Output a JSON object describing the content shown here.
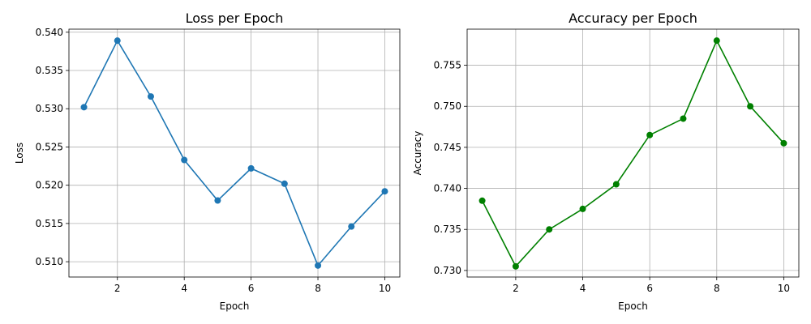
{
  "chart_data": [
    {
      "type": "line",
      "title": "Loss per Epoch",
      "xlabel": "Epoch",
      "ylabel": "Loss",
      "xlim": [
        0.55,
        10.45
      ],
      "ylim": [
        0.508,
        0.5404
      ],
      "xticks": [
        2,
        4,
        6,
        8,
        10
      ],
      "yticks": [
        0.51,
        0.515,
        0.52,
        0.525,
        0.53,
        0.535,
        0.54
      ],
      "ytick_decimals": 3,
      "grid": true,
      "color": "#1f77b4",
      "x": [
        1,
        2,
        3,
        4,
        5,
        6,
        7,
        8,
        9,
        10
      ],
      "y": [
        0.5302,
        0.5389,
        0.5316,
        0.5233,
        0.518,
        0.5222,
        0.5202,
        0.5095,
        0.5146,
        0.5192
      ]
    },
    {
      "type": "line",
      "title": "Accuracy per Epoch",
      "xlabel": "Epoch",
      "ylabel": "Accuracy",
      "xlim": [
        0.55,
        10.45
      ],
      "ylim": [
        0.7292,
        0.7594
      ],
      "xticks": [
        2,
        4,
        6,
        8,
        10
      ],
      "yticks": [
        0.73,
        0.735,
        0.74,
        0.745,
        0.75,
        0.755
      ],
      "ytick_decimals": 3,
      "grid": true,
      "color": "#008000",
      "x": [
        1,
        2,
        3,
        4,
        5,
        6,
        7,
        8,
        9,
        10
      ],
      "y": [
        0.7385,
        0.7305,
        0.735,
        0.7375,
        0.7405,
        0.7465,
        0.7485,
        0.758,
        0.75,
        0.7455
      ]
    }
  ]
}
